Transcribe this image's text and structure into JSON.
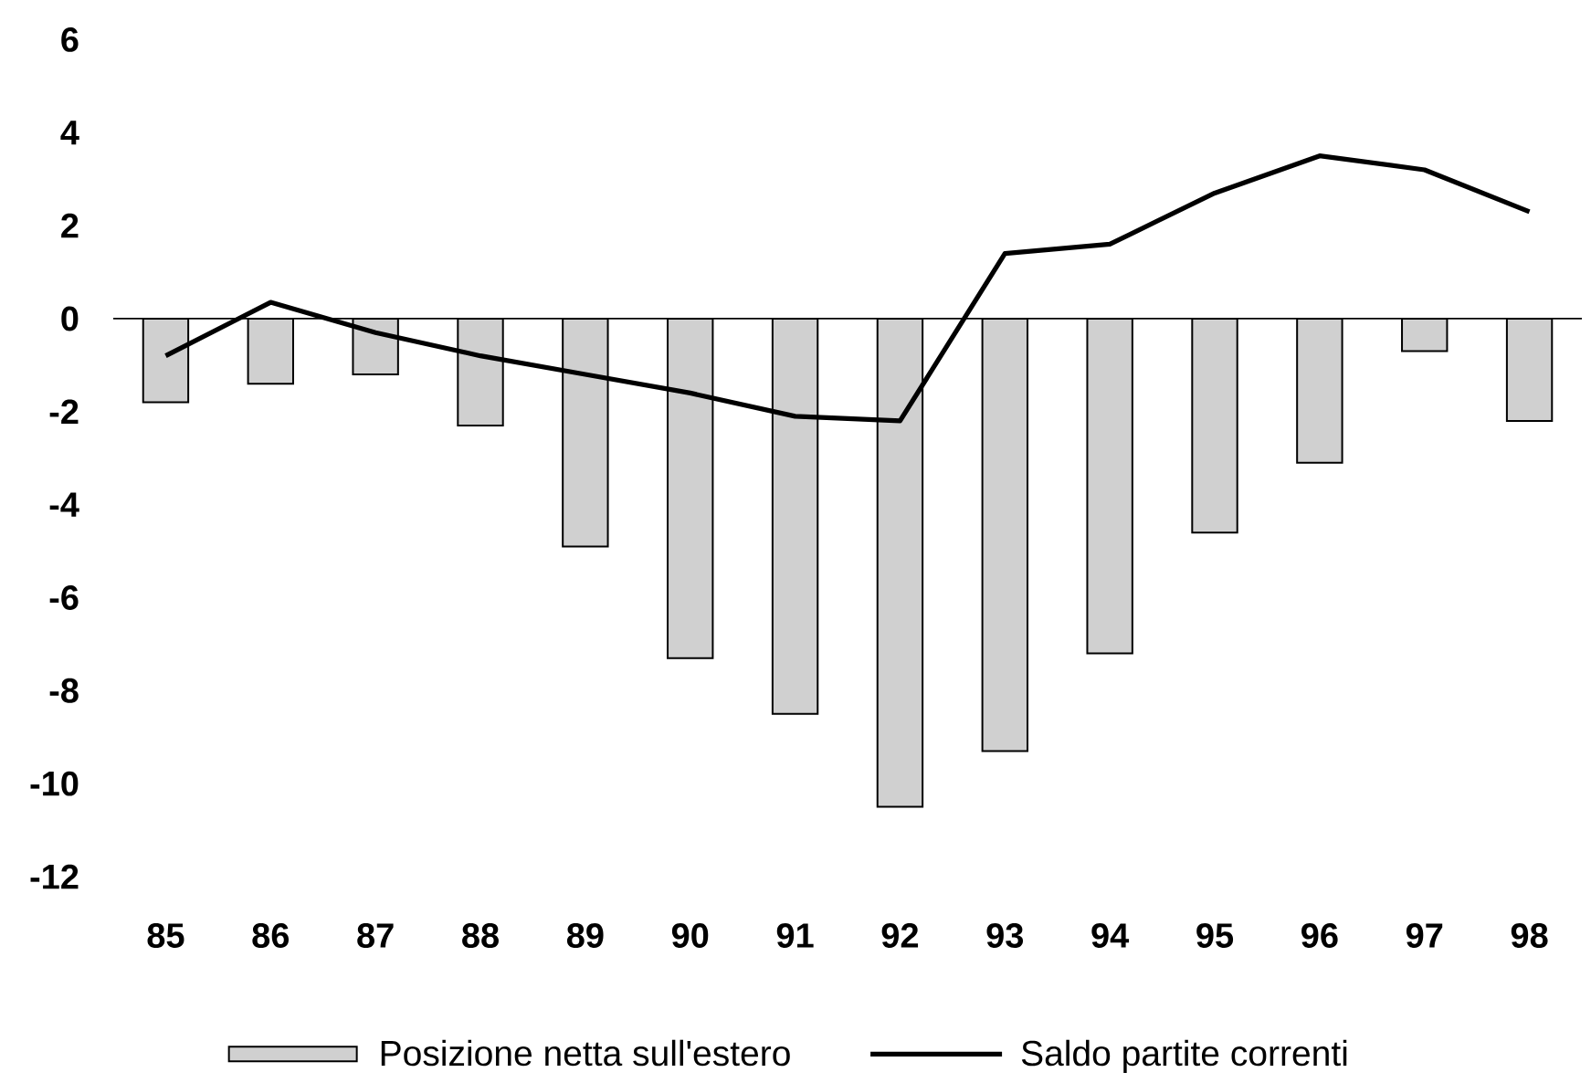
{
  "chart_data": {
    "type": "bar",
    "categories": [
      "85",
      "86",
      "87",
      "88",
      "89",
      "90",
      "91",
      "92",
      "93",
      "94",
      "95",
      "96",
      "97",
      "98"
    ],
    "series": [
      {
        "name": "Posizione netta sull'estero",
        "color": "#d0d0d0",
        "values": [
          -1.8,
          -1.4,
          -1.2,
          -2.3,
          -4.9,
          -7.3,
          -8.5,
          -10.5,
          -9.3,
          -7.2,
          -4.6,
          -3.1,
          -0.7,
          -2.2
        ]
      },
      {
        "name": "Saldo partite correnti",
        "type": "line",
        "color": "#000000",
        "values": [
          -0.8,
          0.35,
          -0.3,
          -0.8,
          -1.2,
          -1.6,
          -2.1,
          -2.2,
          1.4,
          1.6,
          2.7,
          3.5,
          3.2,
          2.3
        ]
      }
    ],
    "ylim": [
      -12,
      6
    ],
    "yticks": [
      -12,
      -10,
      -8,
      -6,
      -4,
      -2,
      0,
      2,
      4,
      6
    ],
    "legend": "bottom",
    "marker": "none",
    "line_style": "solid"
  }
}
